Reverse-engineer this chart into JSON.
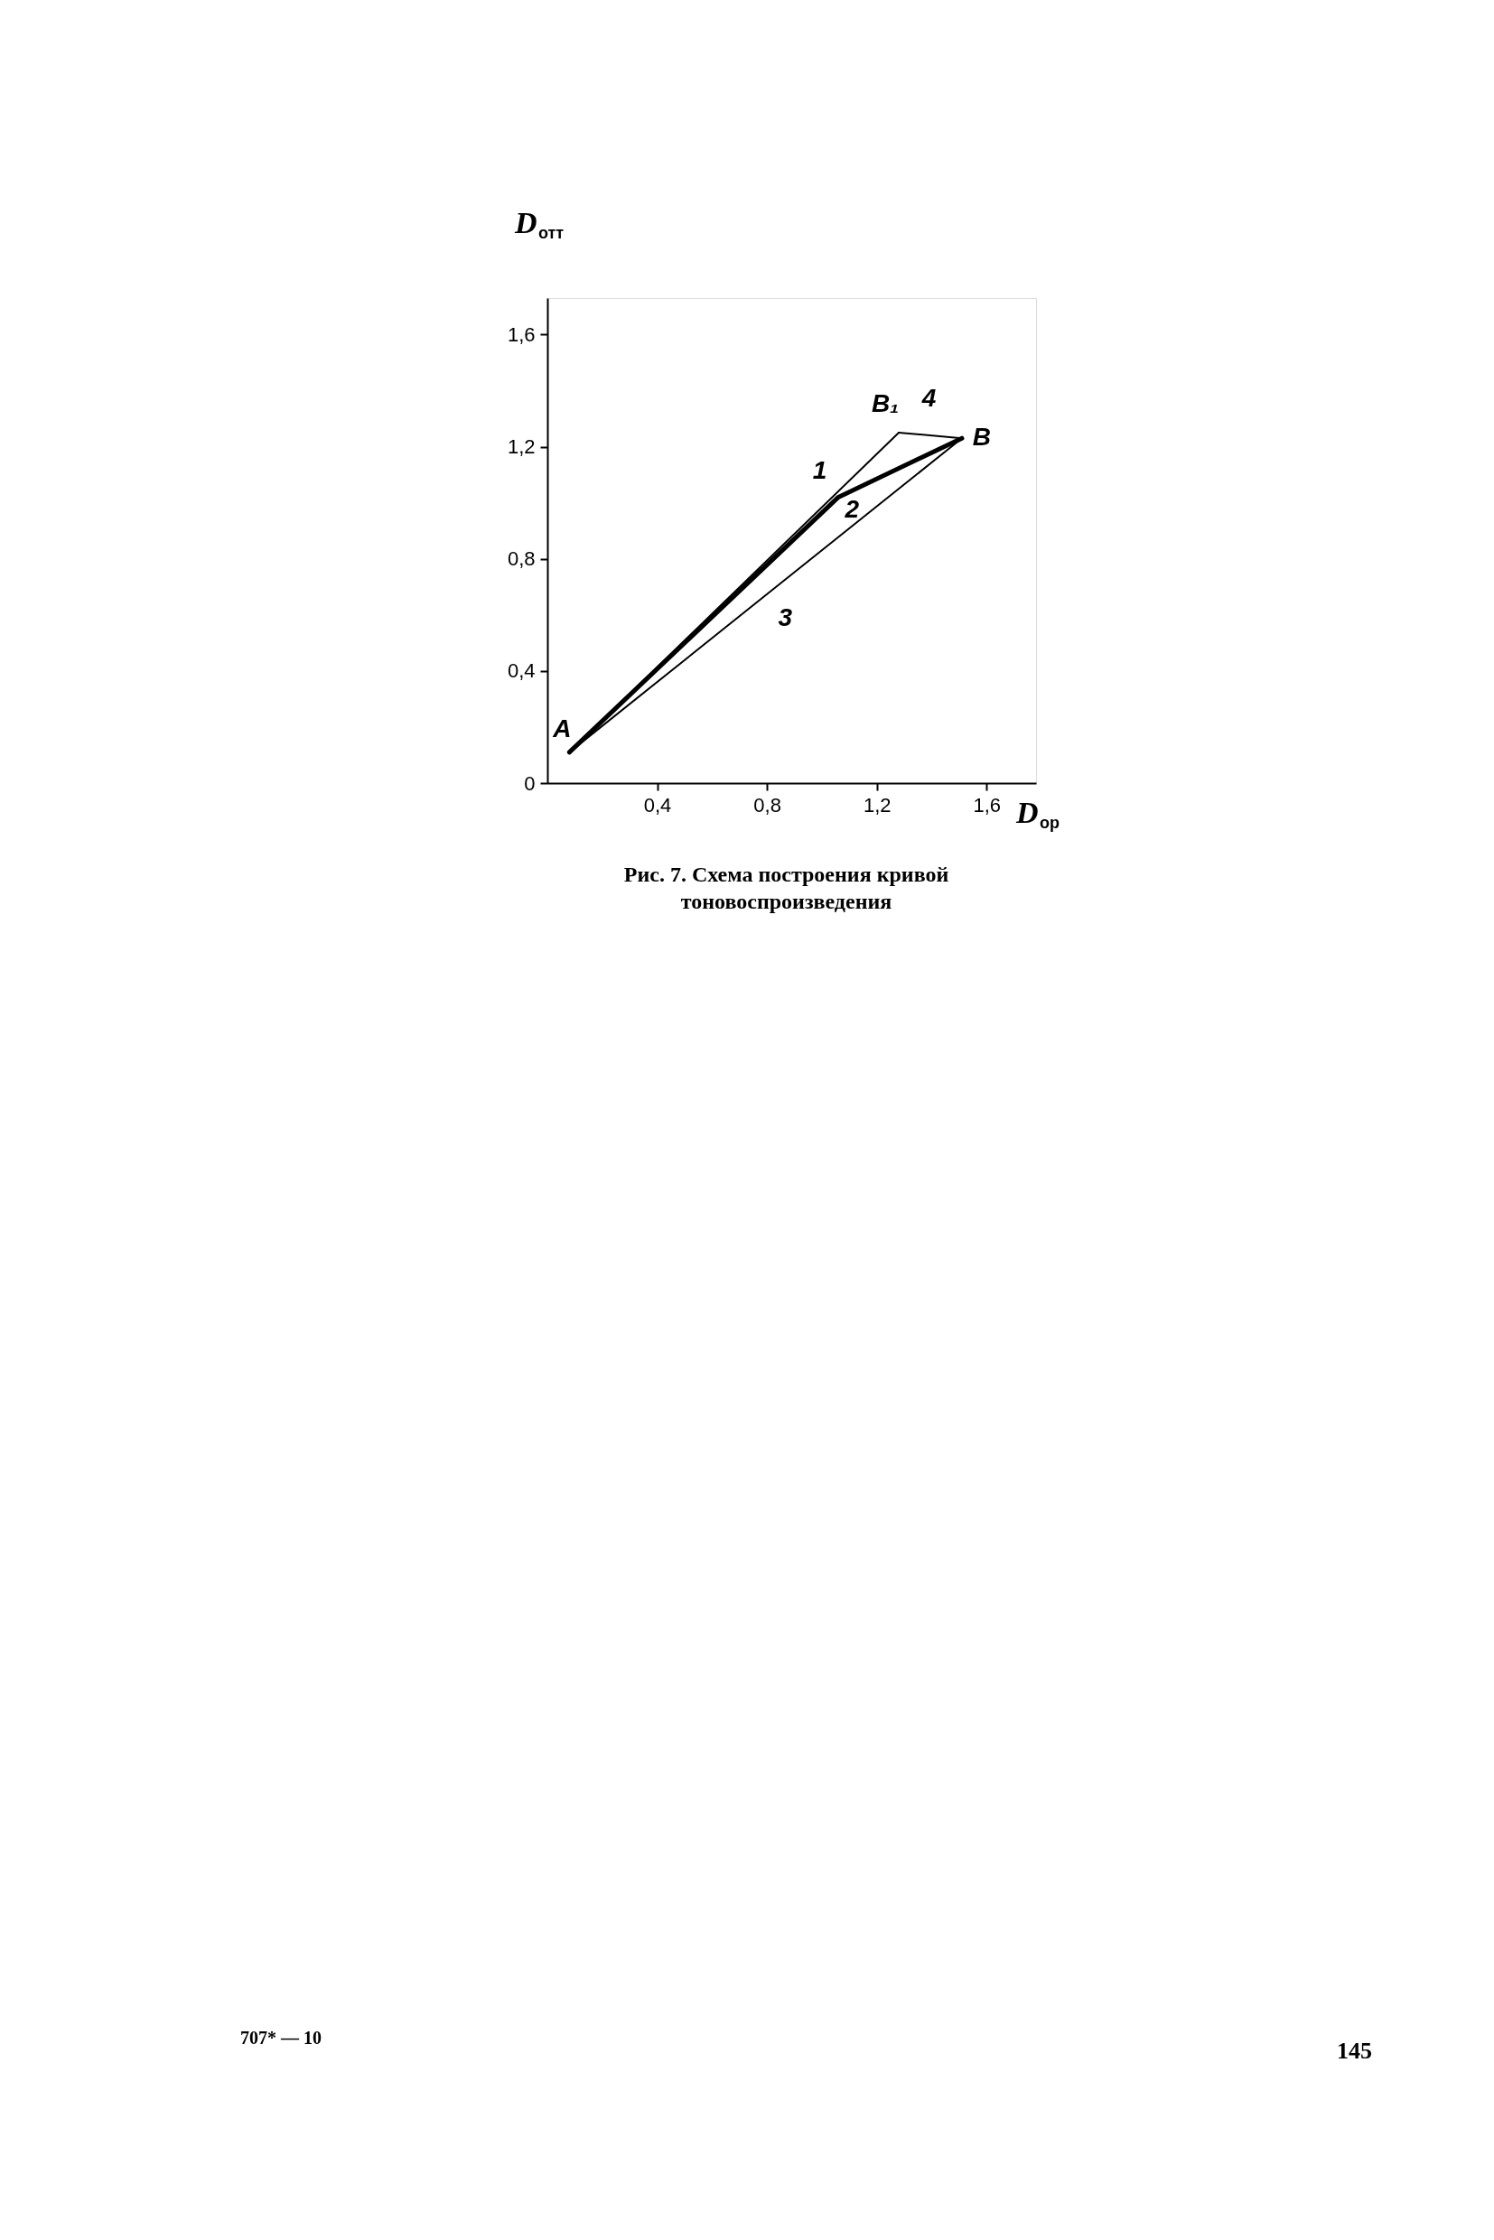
{
  "chart_data": {
    "type": "line",
    "xlabel": "D$_{ор}$",
    "ylabel": "D$_{отт}$",
    "xlim": [
      0,
      1.78
    ],
    "ylim": [
      0,
      1.73
    ],
    "xticks": [
      {
        "value": 0.4,
        "label": "0,4"
      },
      {
        "value": 0.8,
        "label": "0,8"
      },
      {
        "value": 1.2,
        "label": "1,2"
      },
      {
        "value": 1.6,
        "label": "1,6"
      }
    ],
    "yticks": [
      0,
      {
        "value": 0.4,
        "label": "0,4"
      },
      {
        "value": 0.8,
        "label": "0,8"
      },
      {
        "value": 1.2,
        "label": "1,2"
      },
      {
        "value": 1.6,
        "label": "1,6"
      }
    ],
    "grid": false,
    "legend": false,
    "marker": "none",
    "line_style": "solid",
    "series": [
      {
        "name": "1",
        "color": "#000000",
        "x": [
          0.08,
          1.28
        ],
        "values": [
          0.11,
          1.25
        ]
      },
      {
        "name": "2",
        "color": "#000000",
        "x": [
          0.08,
          1.06,
          1.51
        ],
        "values": [
          0.11,
          1.02,
          1.23
        ]
      },
      {
        "name": "3",
        "color": "#000000",
        "x": [
          0.08,
          1.51
        ],
        "values": [
          0.11,
          1.23
        ]
      },
      {
        "name": "4",
        "color": "#000000",
        "x": [
          1.28,
          1.51
        ],
        "values": [
          1.25,
          1.23
        ]
      }
    ],
    "annotations": [
      {
        "text": "A",
        "x": 0.08,
        "y": 0.11
      },
      {
        "text": "B",
        "x": 1.51,
        "y": 1.23
      },
      {
        "text": "B₁",
        "x": 1.28,
        "y": 1.25
      },
      "Рис. 7. Схема построения кривой\nтоновоспроизведения",
      "707* — 10",
      "145"
    ]
  }
}
